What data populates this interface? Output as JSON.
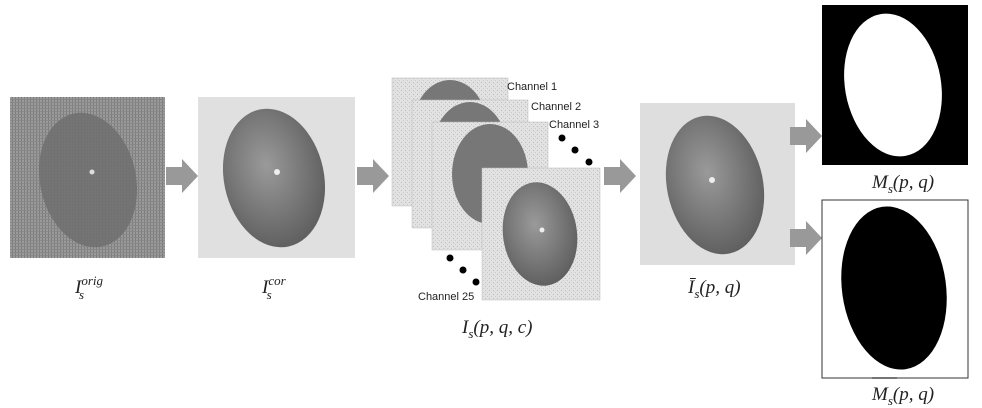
{
  "nodes": [
    {
      "label": {
        "base": "I",
        "sub": "s",
        "sup": "orig"
      }
    },
    {
      "label": {
        "base": "I",
        "sub": "s",
        "sup": "cor"
      }
    },
    {
      "label": {
        "base": "I",
        "sub": "s",
        "args": "(p, q, c)"
      }
    },
    {
      "label": {
        "base": "Ī",
        "sub": "s",
        "args": "(p, q)"
      }
    },
    {
      "label": {
        "base": "M",
        "sub": "s",
        "args": "(p, q)"
      }
    },
    {
      "label": {
        "base": "M",
        "sub": "s",
        "args": "(p, q)"
      }
    }
  ],
  "channels": [
    "Channel 1",
    "Channel 2",
    "Channel 3",
    "Channel 25"
  ]
}
